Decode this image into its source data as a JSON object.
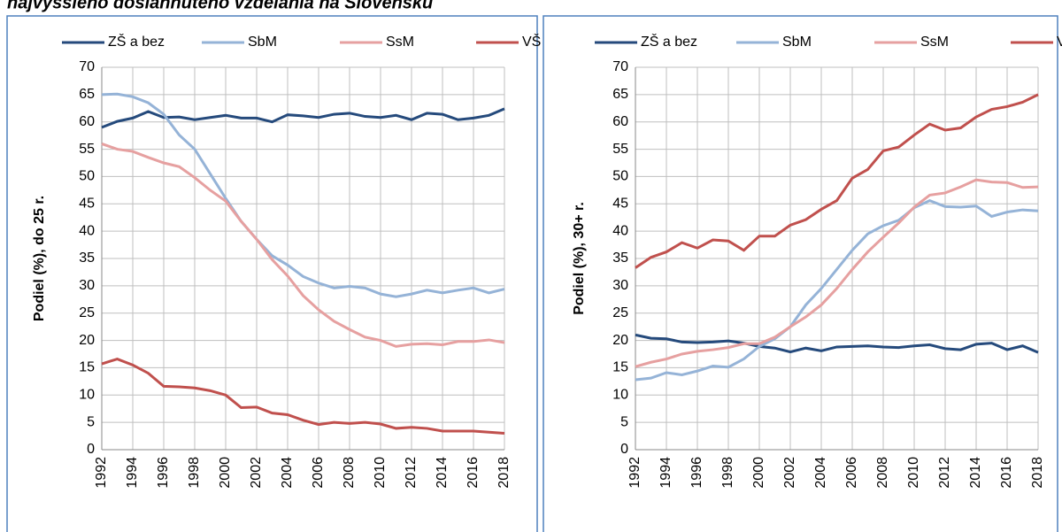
{
  "header": {
    "title": "najvyššieho dosiahnutého vzdelania na Slovensku"
  },
  "chart_data": [
    {
      "type": "line",
      "ylabel": "Podiel (%), do 25 r.",
      "x": [
        1992,
        1993,
        1994,
        1995,
        1996,
        1997,
        1998,
        1999,
        2000,
        2001,
        2002,
        2003,
        2004,
        2005,
        2006,
        2007,
        2008,
        2009,
        2010,
        2011,
        2012,
        2013,
        2014,
        2015,
        2016,
        2017,
        2018
      ],
      "xlim": [
        1992,
        2018
      ],
      "xticks": [
        1992,
        1994,
        1996,
        1998,
        2000,
        2002,
        2004,
        2006,
        2008,
        2010,
        2012,
        2014,
        2016,
        2018
      ],
      "ylim": [
        0,
        70
      ],
      "yticks": [
        0,
        5,
        10,
        15,
        20,
        25,
        30,
        35,
        40,
        45,
        50,
        55,
        60,
        65,
        70
      ],
      "grid": true,
      "legend": "top",
      "series": [
        {
          "name": "ZŠ a bez",
          "color": "#254a7c",
          "values": [
            59,
            60.1,
            60.7,
            61.9,
            60.8,
            60.9,
            60.4,
            60.8,
            61.2,
            60.7,
            60.7,
            60.0,
            61.3,
            61.1,
            60.8,
            61.4,
            61.6,
            61.0,
            60.8,
            61.2,
            60.4,
            61.6,
            61.4,
            60.4,
            60.7,
            61.2,
            62.4
          ]
        },
        {
          "name": "SbM",
          "color": "#95b3d7",
          "values": [
            65,
            65.1,
            64.6,
            63.5,
            61.4,
            57.6,
            55,
            50.5,
            46,
            41.8,
            38.5,
            35.5,
            33.8,
            31.7,
            30.5,
            29.6,
            29.9,
            29.6,
            28.5,
            28.0,
            28.5,
            29.2,
            28.7,
            29.2,
            29.6,
            28.7,
            29.4
          ]
        },
        {
          "name": "SsM",
          "color": "#e6a0a0",
          "values": [
            56,
            55,
            54.6,
            53.5,
            52.5,
            51.8,
            49.8,
            47.5,
            45.5,
            41.8,
            38.5,
            34.8,
            31.8,
            28.2,
            25.6,
            23.5,
            22,
            20.6,
            20,
            18.9,
            19.3,
            19.4,
            19.2,
            19.8,
            19.8,
            20.1,
            19.6
          ]
        },
        {
          "name": "VŠ",
          "color": "#c0504d",
          "values": [
            15.7,
            16.6,
            15.5,
            14,
            11.6,
            11.5,
            11.3,
            10.8,
            10,
            7.7,
            7.8,
            6.7,
            6.4,
            5.4,
            4.6,
            5,
            4.8,
            5,
            4.7,
            3.9,
            4.1,
            3.9,
            3.4,
            3.4,
            3.4,
            3.2,
            3.0
          ]
        }
      ]
    },
    {
      "type": "line",
      "ylabel": "Podiel (%), 30+ r.",
      "x": [
        1992,
        1993,
        1994,
        1995,
        1996,
        1997,
        1998,
        1999,
        2000,
        2001,
        2002,
        2003,
        2004,
        2005,
        2006,
        2007,
        2008,
        2009,
        2010,
        2011,
        2012,
        2013,
        2014,
        2015,
        2016,
        2017,
        2018
      ],
      "xlim": [
        1992,
        2018
      ],
      "xticks": [
        1992,
        1994,
        1996,
        1998,
        2000,
        2002,
        2004,
        2006,
        2008,
        2010,
        2012,
        2014,
        2016,
        2018
      ],
      "ylim": [
        0,
        70
      ],
      "yticks": [
        0,
        5,
        10,
        15,
        20,
        25,
        30,
        35,
        40,
        45,
        50,
        55,
        60,
        65,
        70
      ],
      "grid": true,
      "legend": "top",
      "series": [
        {
          "name": "ZŠ a bez",
          "color": "#254a7c",
          "values": [
            21,
            20.4,
            20.3,
            19.7,
            19.6,
            19.7,
            19.9,
            19.5,
            18.9,
            18.6,
            17.9,
            18.6,
            18.1,
            18.8,
            18.9,
            19.0,
            18.8,
            18.7,
            19.0,
            19.2,
            18.5,
            18.3,
            19.3,
            19.5,
            18.3,
            19.0,
            17.8
          ]
        },
        {
          "name": "SbM",
          "color": "#95b3d7",
          "values": [
            12.8,
            13.1,
            14.1,
            13.7,
            14.4,
            15.3,
            15.1,
            16.6,
            18.9,
            20.3,
            22.5,
            26.5,
            29.5,
            33.0,
            36.5,
            39.5,
            41.0,
            42.0,
            44.3,
            45.6,
            44.5,
            44.4,
            44.6,
            42.7,
            43.5,
            43.9,
            43.7
          ]
        },
        {
          "name": "SsM",
          "color": "#e6a0a0",
          "values": [
            15.2,
            16.0,
            16.6,
            17.5,
            18.0,
            18.3,
            18.7,
            19.4,
            19.4,
            20.6,
            22.5,
            24.3,
            26.5,
            29.5,
            33.0,
            36.2,
            38.9,
            41.5,
            44.4,
            46.6,
            47.0,
            48.1,
            49.4,
            49.0,
            48.9,
            48.0,
            48.1
          ]
        },
        {
          "name": "VŠ",
          "color": "#c0504d",
          "values": [
            33.3,
            35.2,
            36.2,
            37.9,
            36.9,
            38.4,
            38.2,
            36.5,
            39.1,
            39.1,
            41.1,
            42.1,
            44.0,
            45.6,
            49.7,
            51.3,
            54.7,
            55.4,
            57.6,
            59.6,
            58.5,
            58.9,
            60.9,
            62.3,
            62.8,
            63.6,
            65.0
          ]
        }
      ]
    }
  ]
}
